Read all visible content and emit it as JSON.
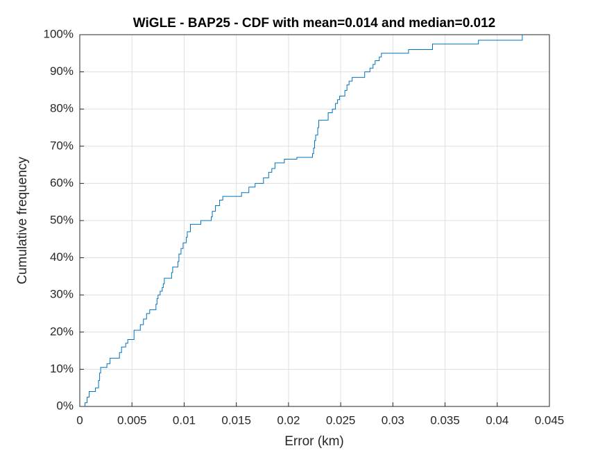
{
  "chart_data": {
    "type": "stairs",
    "title": "WiGLE - BAP25 - CDF with mean=0.014 and median=0.012",
    "x_label": "Error (km)",
    "y_label": "Cumulative frequency",
    "series": [
      {
        "color": "#0072bd",
        "x": [
          0.0005,
          0.0005,
          0.0007,
          0.0009,
          0.0015,
          0.0018,
          0.0019,
          0.002,
          0.0026,
          0.0029,
          0.0038,
          0.004,
          0.0044,
          0.0046,
          0.0052,
          0.0058,
          0.0061,
          0.0064,
          0.0067,
          0.0073,
          0.0074,
          0.0075,
          0.0077,
          0.0079,
          0.008,
          0.0081,
          0.0088,
          0.0089,
          0.0094,
          0.0095,
          0.0097,
          0.0099,
          0.0102,
          0.0103,
          0.0106,
          0.0116,
          0.0126,
          0.0127,
          0.013,
          0.0134,
          0.0137,
          0.0155,
          0.0162,
          0.0168,
          0.0176,
          0.0181,
          0.0184,
          0.0187,
          0.0196,
          0.0208,
          0.0223,
          0.0224,
          0.0225,
          0.0226,
          0.0228,
          0.0229,
          0.0238,
          0.0242,
          0.0245,
          0.0247,
          0.0249,
          0.0254,
          0.0256,
          0.0258,
          0.0261,
          0.0273,
          0.0278,
          0.0281,
          0.0283,
          0.0287,
          0.0289,
          0.0315,
          0.0338,
          0.0382,
          0.0424,
          0.0424
        ],
        "y": [
          0,
          1,
          2.5,
          4,
          5,
          7,
          9,
          10.5,
          11.5,
          13,
          14.5,
          16,
          17,
          18,
          20.5,
          22,
          23.5,
          25,
          26,
          27.5,
          29,
          30,
          31,
          32,
          33,
          34.5,
          36,
          37.5,
          39,
          41,
          42.5,
          44,
          45.5,
          47,
          49,
          50,
          51,
          52.5,
          54,
          55.5,
          56.5,
          57.5,
          59,
          60,
          61.5,
          63,
          64,
          65.5,
          66.5,
          67,
          68,
          69.5,
          71.5,
          73,
          75,
          77,
          79,
          80,
          81.5,
          82.5,
          83.5,
          85,
          86.5,
          87.5,
          88.5,
          90,
          91,
          92,
          93,
          94,
          95,
          96,
          97.5,
          98.5,
          99.5,
          100
        ]
      }
    ],
    "xlim": [
      0,
      0.045
    ],
    "ylim": [
      0,
      100
    ],
    "xticks": [
      0,
      0.005,
      0.01,
      0.015,
      0.02,
      0.025,
      0.03,
      0.035,
      0.04,
      0.045
    ],
    "yticks": [
      {
        "value": 0,
        "label": "0%"
      },
      {
        "value": 10,
        "label": "10%"
      },
      {
        "value": 20,
        "label": "20%"
      },
      {
        "value": 30,
        "label": "30%"
      },
      {
        "value": 40,
        "label": "40%"
      },
      {
        "value": 50,
        "label": "50%"
      },
      {
        "value": 60,
        "label": "60%"
      },
      {
        "value": 70,
        "label": "70%"
      },
      {
        "value": 80,
        "label": "80%"
      },
      {
        "value": 90,
        "label": "90%"
      },
      {
        "value": 100,
        "label": "100%"
      }
    ],
    "grid": true
  }
}
